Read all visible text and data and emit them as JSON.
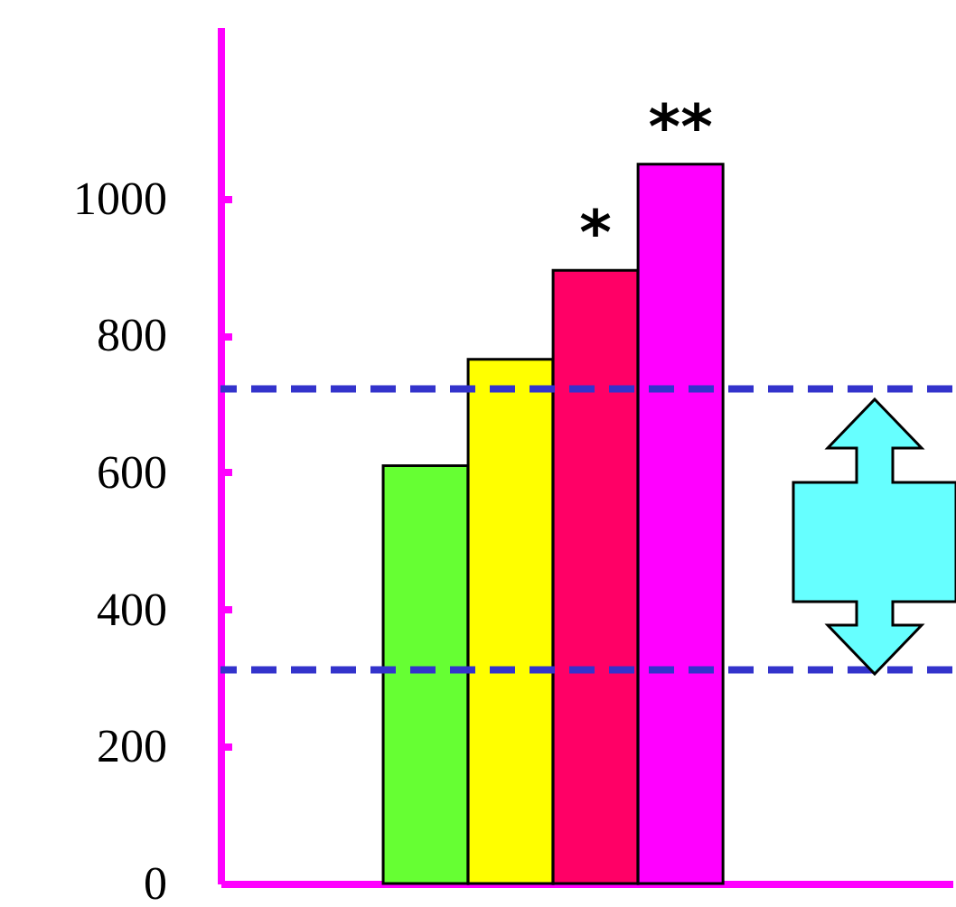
{
  "chart_data": {
    "type": "bar",
    "categories": [
      null,
      null,
      null,
      null
    ],
    "values": [
      610,
      765,
      895,
      1050
    ],
    "colors": [
      "#66ff33",
      "#ffff00",
      "#ff0066",
      "#ff00ff"
    ],
    "value_labels": [
      null,
      null,
      "*",
      "**"
    ],
    "ylim": [
      0,
      1250
    ],
    "yticks": [
      0,
      200,
      400,
      600,
      800,
      1000
    ],
    "grid": false,
    "ref_lines": [
      {
        "axis": "y",
        "value": 722,
        "color": "#3333cc",
        "line_style": "dashed"
      },
      {
        "axis": "y",
        "value": 312,
        "color": "#3333cc",
        "line_style": "dashed"
      }
    ]
  }
}
